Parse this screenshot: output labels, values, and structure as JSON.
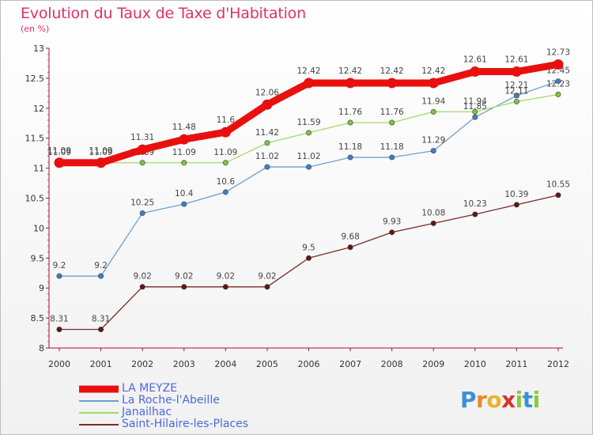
{
  "title": "Evolution du Taux de Taxe d'Habitation",
  "subtitle": "(en %)",
  "brand": {
    "letters": [
      "P",
      "r",
      "o",
      "x",
      "i",
      "t",
      "i"
    ],
    "colors": [
      "#3a8fd8",
      "#e8892b",
      "#e8b42b",
      "#d8342b",
      "#8cc63a",
      "#3a8fd8",
      "#8cc63a"
    ]
  },
  "chart_data": {
    "type": "line",
    "x": [
      "2000",
      "2001",
      "2002",
      "2003",
      "2004",
      "2005",
      "2006",
      "2007",
      "2008",
      "2009",
      "2010",
      "2011",
      "2012"
    ],
    "ylim": [
      8,
      13
    ],
    "yticks": [
      "8",
      "8.5",
      "9",
      "9.5",
      "10",
      "10.5",
      "11",
      "11.5",
      "12",
      "12.5",
      "13"
    ],
    "ytick_values": [
      8,
      8.5,
      9,
      9.5,
      10,
      10.5,
      11,
      11.5,
      12,
      12.5,
      13
    ],
    "grid": false,
    "legend_position": "bottom-left",
    "series": [
      {
        "name": "Saint-Hilaire-les-Places",
        "color": "#7a2a2a",
        "marker": "#5e1717",
        "values": [
          8.31,
          8.31,
          9.02,
          9.02,
          9.02,
          9.02,
          9.5,
          9.68,
          9.93,
          10.08,
          10.23,
          10.39,
          10.55
        ],
        "labels": [
          "8.31",
          "8.31",
          "9.02",
          "9.02",
          "9.02",
          "9.02",
          "9.5",
          "9.68",
          "9.93",
          "10.08",
          "10.23",
          "10.39",
          "10.55"
        ]
      },
      {
        "name": "La Roche-l'Abeille",
        "color": "#6b9fd0",
        "marker": "#3d7fc4",
        "values": [
          9.2,
          9.2,
          10.25,
          10.4,
          10.6,
          11.02,
          11.02,
          11.18,
          11.18,
          11.29,
          11.85,
          12.21,
          12.45
        ],
        "labels": [
          "9.2",
          "9.2",
          "10.25",
          "10.4",
          "10.6",
          "11.02",
          "11.02",
          "11.18",
          "11.18",
          "11.29",
          "11.85",
          "12.21",
          "12.45"
        ]
      },
      {
        "name": "Janailhac",
        "color": "#a3da6b",
        "marker": "#7fc241",
        "values": [
          11.09,
          11.09,
          11.09,
          11.09,
          11.09,
          11.42,
          11.59,
          11.76,
          11.76,
          11.94,
          11.94,
          12.11,
          12.23
        ],
        "labels": [
          "11.09",
          "11.09",
          "11.09",
          "11.09",
          "11.09",
          "11.42",
          "11.59",
          "11.76",
          "11.76",
          "11.94",
          "11.94",
          "12.11",
          "12.23"
        ]
      },
      {
        "name": "LA MEYZE",
        "color": "#e8100e",
        "marker": "#e8100e",
        "values": [
          11.09,
          11.09,
          11.31,
          11.48,
          11.6,
          12.06,
          12.42,
          12.42,
          12.42,
          12.42,
          12.61,
          12.61,
          12.73
        ],
        "labels": [
          "11.09",
          "11.09",
          "11.31",
          "11.48",
          "11.6",
          "12.06",
          "12.42",
          "12.42",
          "12.42",
          "12.42",
          "12.61",
          "12.61",
          "12.73"
        ]
      }
    ],
    "legend_order": [
      "LA MEYZE",
      "La Roche-l'Abeille",
      "Janailhac",
      "Saint-Hilaire-les-Places"
    ]
  }
}
